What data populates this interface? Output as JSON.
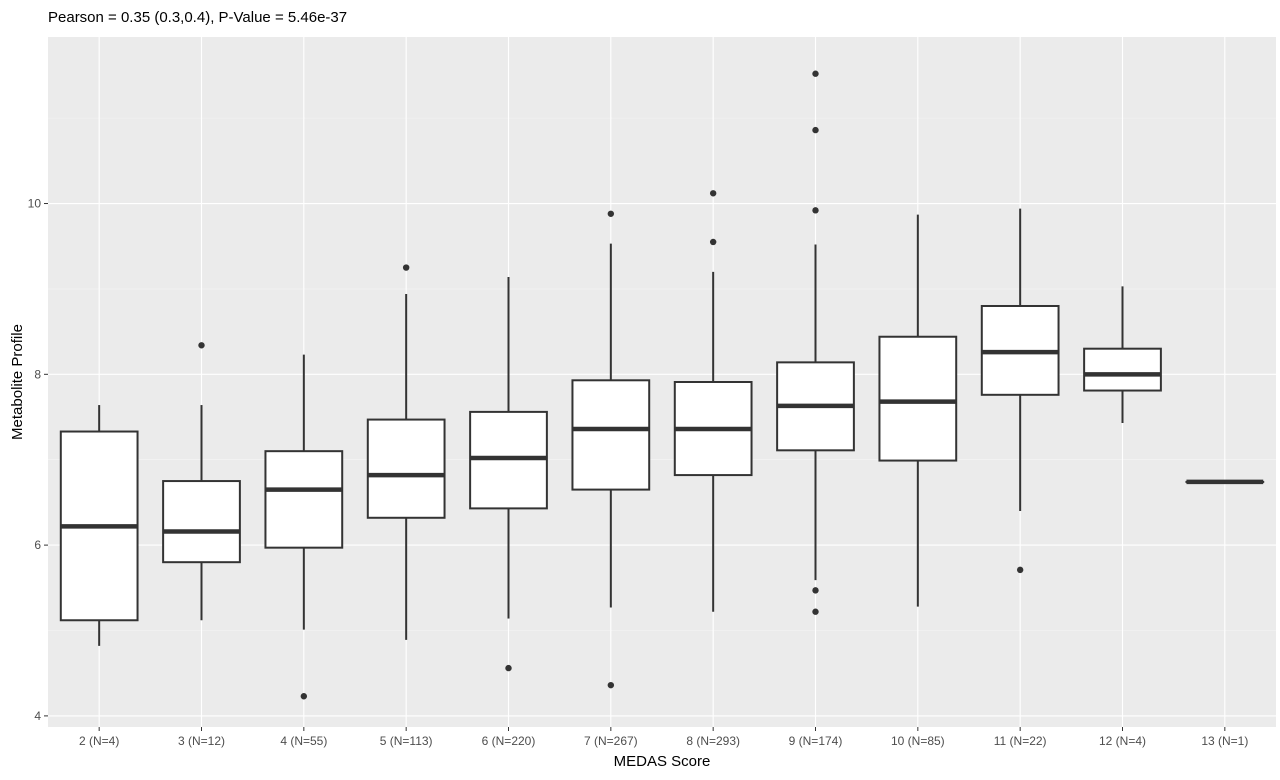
{
  "chart_data": {
    "type": "box",
    "title": "Pearson = 0.35 (0.3,0.4), P-Value = 5.46e-37",
    "xlabel": "MEDAS Score",
    "ylabel": "Metabolite Profile",
    "ylim": [
      3.87,
      11.95
    ],
    "yticks": [
      4,
      6,
      8,
      10
    ],
    "ytick_labels": [
      "4",
      "6",
      "8",
      "10"
    ],
    "grid": true,
    "categories": [
      "2 (N=4)",
      "3 (N=12)",
      "4 (N=55)",
      "5 (N=113)",
      "6 (N=220)",
      "7 (N=267)",
      "8 (N=293)",
      "9 (N=174)",
      "10 (N=85)",
      "11 (N=22)",
      "12 (N=4)",
      "13 (N=1)"
    ],
    "boxes": [
      {
        "whisker_low": 4.82,
        "q1": 5.12,
        "median": 6.22,
        "q3": 7.33,
        "whisker_high": 7.64,
        "outliers": []
      },
      {
        "whisker_low": 5.12,
        "q1": 5.8,
        "median": 6.16,
        "q3": 6.75,
        "whisker_high": 7.64,
        "outliers": [
          8.34
        ]
      },
      {
        "whisker_low": 5.01,
        "q1": 5.97,
        "median": 6.65,
        "q3": 7.1,
        "whisker_high": 8.23,
        "outliers": [
          4.23
        ]
      },
      {
        "whisker_low": 4.89,
        "q1": 6.32,
        "median": 6.82,
        "q3": 7.47,
        "whisker_high": 8.94,
        "outliers": [
          9.25
        ]
      },
      {
        "whisker_low": 5.14,
        "q1": 6.43,
        "median": 7.02,
        "q3": 7.56,
        "whisker_high": 9.14,
        "outliers": [
          4.56
        ]
      },
      {
        "whisker_low": 5.27,
        "q1": 6.65,
        "median": 7.36,
        "q3": 7.93,
        "whisker_high": 9.53,
        "outliers": [
          4.36,
          9.88
        ]
      },
      {
        "whisker_low": 5.22,
        "q1": 6.82,
        "median": 7.36,
        "q3": 7.91,
        "whisker_high": 9.2,
        "outliers": [
          9.55,
          10.12
        ]
      },
      {
        "whisker_low": 5.59,
        "q1": 7.11,
        "median": 7.63,
        "q3": 8.14,
        "whisker_high": 9.52,
        "outliers": [
          5.22,
          5.47,
          9.92,
          10.86,
          11.52
        ]
      },
      {
        "whisker_low": 5.28,
        "q1": 6.99,
        "median": 7.68,
        "q3": 8.44,
        "whisker_high": 9.87,
        "outliers": []
      },
      {
        "whisker_low": 6.4,
        "q1": 7.76,
        "median": 8.26,
        "q3": 8.8,
        "whisker_high": 9.94,
        "outliers": [
          5.71
        ]
      },
      {
        "whisker_low": 7.43,
        "q1": 7.81,
        "median": 8.0,
        "q3": 8.3,
        "whisker_high": 9.03,
        "outliers": []
      },
      {
        "whisker_low": 6.74,
        "q1": 6.74,
        "median": 6.74,
        "q3": 6.74,
        "whisker_high": 6.74,
        "outliers": []
      }
    ]
  }
}
